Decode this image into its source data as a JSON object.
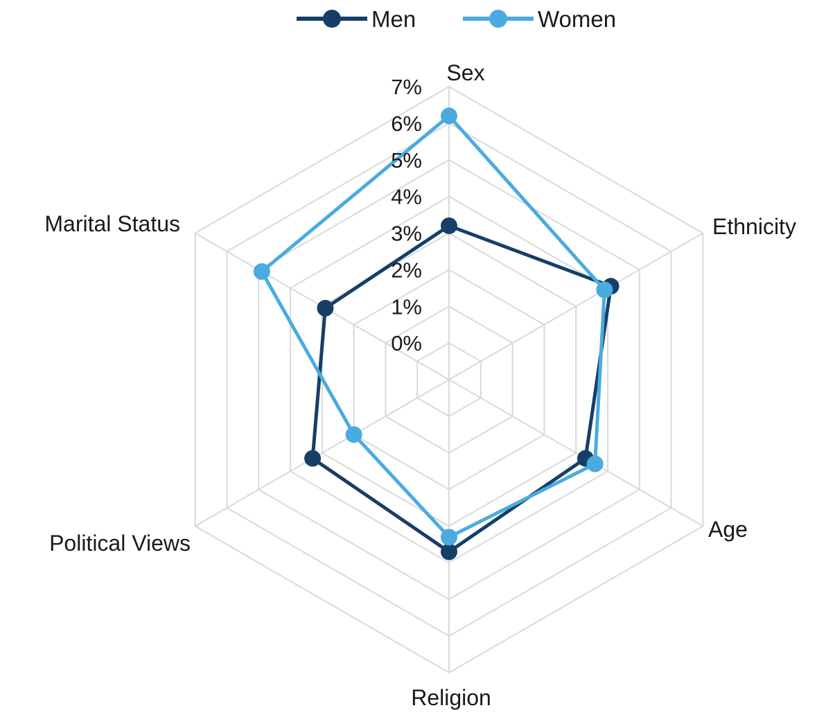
{
  "chart_data": {
    "type": "radar",
    "axes": [
      "Sex",
      "Ethnicity",
      "Age",
      "Religion",
      "Political Views",
      "Marital Status"
    ],
    "rlim": [
      -1,
      7
    ],
    "ticks": [
      "0%",
      "1%",
      "2%",
      "3%",
      "4%",
      "5%",
      "6%",
      "7%"
    ],
    "tick_values": [
      0,
      1,
      2,
      3,
      4,
      5,
      6,
      7
    ],
    "grid": true,
    "legend_position": "top",
    "series": [
      {
        "name": "Men",
        "color": "#163f68",
        "values": [
          3.2,
          4.1,
          3.3,
          3.7,
          3.3,
          2.9
        ]
      },
      {
        "name": "Women",
        "color": "#4aabe0",
        "values": [
          6.2,
          3.9,
          3.6,
          3.3,
          2.0,
          4.9
        ]
      }
    ]
  }
}
